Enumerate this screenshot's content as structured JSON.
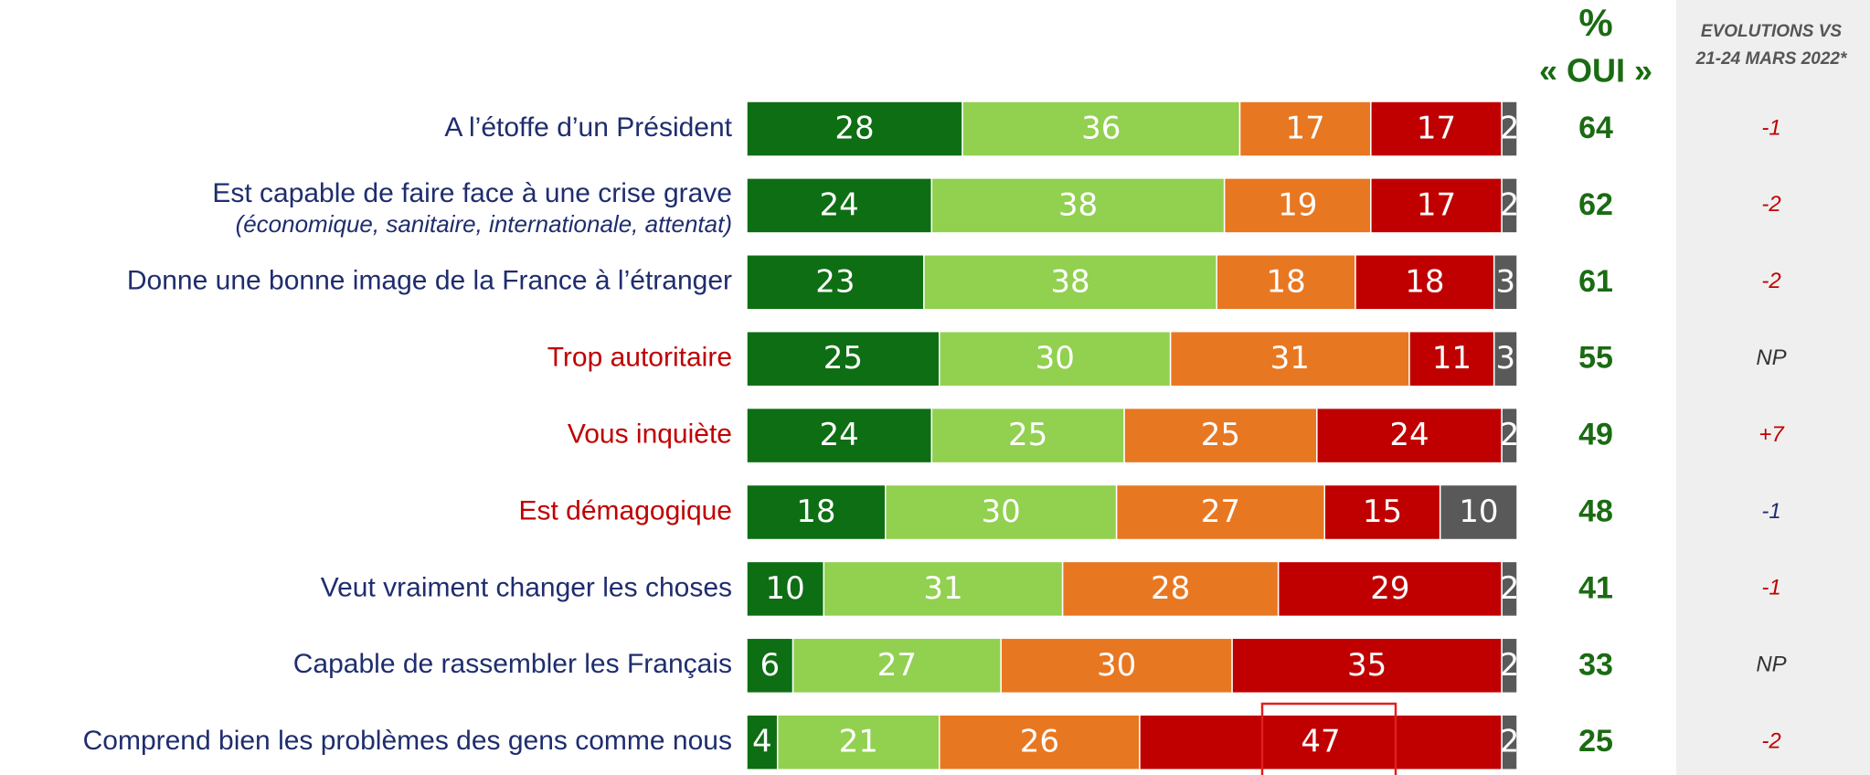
{
  "chart_data": {
    "type": "bar",
    "orientation": "horizontal",
    "stacked": true,
    "categories": [
      "A l’étoffe d’un Président",
      "Est capable de faire face à une crise grave",
      "Donne une bonne image de la France à l’étranger",
      "Trop autoritaire",
      "Vous inquiète",
      "Est démagogique",
      "Veut vraiment changer les choses",
      "Capable de rassembler les Français",
      "Comprend bien les problèmes des gens comme nous"
    ],
    "category_notes": [
      null,
      "(économique, sanitaire, internationale, attentat)",
      null,
      null,
      null,
      null,
      null,
      null,
      null
    ],
    "category_colors": [
      "#1f2d6e",
      "#1f2d6e",
      "#1f2d6e",
      "#c00000",
      "#c00000",
      "#c00000",
      "#1f2d6e",
      "#1f2d6e",
      "#1f2d6e"
    ],
    "xlim": [
      0,
      100
    ],
    "series": [
      {
        "color": "#0e6e14",
        "values": [
          28,
          24,
          23,
          25,
          24,
          18,
          10,
          6,
          4
        ]
      },
      {
        "color": "#92d050",
        "values": [
          36,
          38,
          38,
          30,
          25,
          30,
          31,
          27,
          21
        ]
      },
      {
        "color": "#e87722",
        "values": [
          17,
          19,
          18,
          31,
          25,
          27,
          28,
          30,
          26
        ]
      },
      {
        "color": "#c00000",
        "values": [
          17,
          17,
          18,
          11,
          24,
          15,
          29,
          35,
          47
        ]
      },
      {
        "color": "#595959",
        "values": [
          2,
          2,
          3,
          3,
          2,
          10,
          2,
          2,
          2
        ]
      }
    ],
    "oui_title": "%",
    "oui_subtitle": "« OUI »",
    "oui_color": "#1a6b12",
    "oui_values": [
      64,
      62,
      61,
      55,
      49,
      48,
      41,
      33,
      25
    ],
    "evolution_title": "EVOLUTIONS VS",
    "evolution_subtitle": "21-24 MARS 2022*",
    "evolutions": [
      "-1",
      "-2",
      "-2",
      "NP",
      "+7",
      "-1",
      "-1",
      "NP",
      "-2"
    ],
    "evolution_colors": [
      "#c00000",
      "#c00000",
      "#c00000",
      "#333333",
      "#c00000",
      "#1f2d6e",
      "#c00000",
      "#333333",
      "#c00000"
    ]
  }
}
